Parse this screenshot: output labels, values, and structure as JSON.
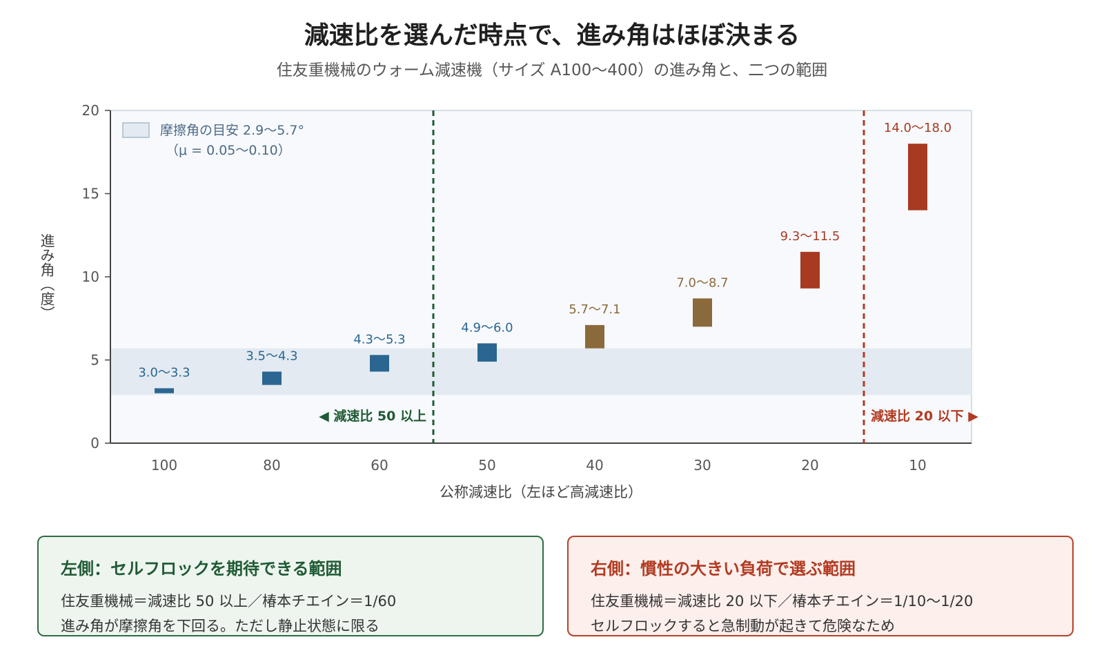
{
  "title": "減速比を選んだ時点で、進み角はほぼ決まる",
  "subtitle": "住友重機械のウォーム減速機（サイズ A100〜400）の進み角と、二つの範囲",
  "chart_data": {
    "type": "bar",
    "categories": [
      "100",
      "80",
      "60",
      "50",
      "40",
      "30",
      "20",
      "10"
    ],
    "ranges": [
      {
        "low": 3.0,
        "high": 3.3,
        "label": "3.0〜3.3",
        "color": "#2a6691"
      },
      {
        "low": 3.5,
        "high": 4.3,
        "label": "3.5〜4.3",
        "color": "#2a6691"
      },
      {
        "low": 4.3,
        "high": 5.3,
        "label": "4.3〜5.3",
        "color": "#2a6691"
      },
      {
        "low": 4.9,
        "high": 6.0,
        "label": "4.9〜6.0",
        "color": "#2a6691"
      },
      {
        "low": 5.7,
        "high": 7.1,
        "label": "5.7〜7.1",
        "color": "#8a6a3b"
      },
      {
        "low": 7.0,
        "high": 8.7,
        "label": "7.0〜8.7",
        "color": "#8a6a3b"
      },
      {
        "low": 9.3,
        "high": 11.5,
        "label": "9.3〜11.5",
        "color": "#a83a22"
      },
      {
        "low": 14.0,
        "high": 18.0,
        "label": "14.0〜18.0",
        "color": "#a83a22"
      }
    ],
    "ylim": [
      0,
      20
    ],
    "yticks": [
      0,
      5,
      10,
      15,
      20
    ],
    "xlabel": "公称減速比（左ほど高減速比）",
    "ylabel": "進み角（度）",
    "friction_band": {
      "low": 2.9,
      "high": 5.7,
      "color": "#e3eaf1"
    },
    "legend": {
      "line1": "摩擦角の目安 2.9〜5.7°",
      "line2": "（μ = 0.05〜0.10）",
      "position": "top-left"
    },
    "dividers": [
      {
        "between": [
          "60",
          "50"
        ],
        "color": "#1f5a34",
        "label": "◀ 減速比 50 以上",
        "label_side": "left"
      },
      {
        "between": [
          "20",
          "10"
        ],
        "color": "#b23a22",
        "label": "減速比 20 以下 ▶",
        "label_side": "right"
      }
    ],
    "plot_background": "#f7f9fc"
  },
  "cards": {
    "left": {
      "title": "左側：セルフロックを期待できる範囲",
      "line1": "住友重機械＝減速比 50 以上／椿本チエイン＝1/60",
      "line2": "進み角が摩擦角を下回る。ただし静止状態に限る"
    },
    "right": {
      "title": "右側：慣性の大きい負荷で選ぶ範囲",
      "line1": "住友重機械＝減速比 20 以下／椿本チエイン＝1/10〜1/20",
      "line2": "セルフロックすると急制動が起きて危険なため"
    }
  }
}
